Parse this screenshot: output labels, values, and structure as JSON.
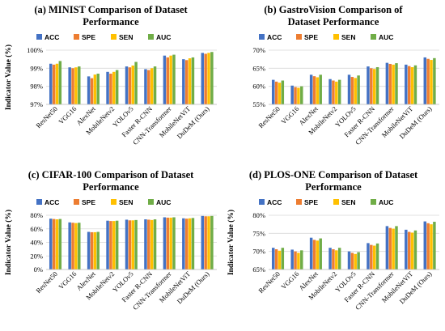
{
  "legend": [
    "ACC",
    "SPE",
    "SEN",
    "AUC"
  ],
  "colors": {
    "ACC": "#4472c4",
    "SPE": "#ed7d31",
    "SEN": "#ffc000",
    "AUC": "#70ad47",
    "grid": "#d9d9d9"
  },
  "chart_data": [
    {
      "type": "bar",
      "title_lines": [
        "(a) MINIST Comparison of Dataset",
        "Performance"
      ],
      "ylabel": "Indicator Value (%)",
      "ylim": [
        97,
        100
      ],
      "yticks": [
        97,
        98,
        99,
        100
      ],
      "tick_suffix": "%",
      "grid": true,
      "legend_position": "top",
      "categories": [
        "ResNet50",
        "VGG16",
        "AlexNet",
        "MobileNetv2",
        "YOLOv5",
        "Faster R-CNN",
        "CNN-Transformer",
        "MobileNetViT",
        "DuDeM (Ours)"
      ],
      "series": [
        {
          "name": "ACC",
          "values": [
            99.25,
            99.05,
            98.55,
            98.8,
            99.1,
            98.95,
            99.7,
            99.5,
            99.85
          ]
        },
        {
          "name": "SPE",
          "values": [
            99.2,
            99.0,
            98.45,
            98.7,
            99.05,
            98.9,
            99.6,
            99.45,
            99.8
          ]
        },
        {
          "name": "SEN",
          "values": [
            99.25,
            99.05,
            98.65,
            98.8,
            99.15,
            99.0,
            99.7,
            99.55,
            99.85
          ]
        },
        {
          "name": "AUC",
          "values": [
            99.4,
            99.1,
            98.7,
            98.9,
            99.35,
            99.1,
            99.75,
            99.6,
            99.9
          ]
        }
      ]
    },
    {
      "type": "bar",
      "title_lines": [
        "(b) GastroVision Comparison of",
        "Dataset Performance"
      ],
      "ylabel": "",
      "ylim": [
        55,
        70
      ],
      "yticks": [
        55,
        60,
        65,
        70
      ],
      "tick_suffix": "%",
      "grid": true,
      "legend_position": "top",
      "categories": [
        "ResNet50",
        "VGG16",
        "AlexNet",
        "MobileNetv2",
        "YOLOv5",
        "Faster R-CNN",
        "CNN-Transformer",
        "MobileNetViT",
        "DuDeM (Ours)"
      ],
      "series": [
        {
          "name": "ACC",
          "values": [
            61.8,
            60.2,
            63.2,
            62.0,
            63.2,
            65.5,
            66.5,
            66.0,
            68.0
          ]
        },
        {
          "name": "SPE",
          "values": [
            61.3,
            59.8,
            62.8,
            61.6,
            62.6,
            65.0,
            66.2,
            65.6,
            67.6
          ]
        },
        {
          "name": "SEN",
          "values": [
            61.0,
            59.6,
            62.5,
            61.3,
            62.3,
            64.8,
            66.0,
            65.3,
            67.3
          ]
        },
        {
          "name": "AUC",
          "values": [
            61.6,
            60.0,
            63.2,
            61.8,
            63.0,
            65.3,
            66.4,
            65.8,
            67.8
          ]
        }
      ]
    },
    {
      "type": "bar",
      "title_lines": [
        "(c) CIFAR-100 Comparison of Dataset",
        "Performance"
      ],
      "ylabel": "Indicator Value (%)",
      "ylim": [
        0,
        80
      ],
      "yticks": [
        0,
        20,
        40,
        60,
        80
      ],
      "tick_suffix": "%",
      "grid": true,
      "legend_position": "top",
      "categories": [
        "ResNet50",
        "VGG16",
        "AlexNet",
        "MobileNetv2",
        "YOLOv5",
        "Faster R-CNN",
        "CNN-Transformer",
        "MobileNetViT",
        "DuDeM (Ours)"
      ],
      "series": [
        {
          "name": "ACC",
          "values": [
            75.0,
            69.5,
            55.5,
            72.0,
            73.5,
            74.0,
            77.0,
            75.5,
            79.0
          ]
        },
        {
          "name": "SPE",
          "values": [
            74.5,
            69.0,
            55.0,
            71.5,
            72.5,
            73.5,
            76.5,
            75.0,
            78.5
          ]
        },
        {
          "name": "SEN",
          "values": [
            74.0,
            68.5,
            55.0,
            71.5,
            72.5,
            73.0,
            76.5,
            75.5,
            78.5
          ]
        },
        {
          "name": "AUC",
          "values": [
            74.5,
            69.0,
            55.5,
            72.0,
            73.0,
            74.0,
            77.0,
            76.0,
            79.0
          ]
        }
      ]
    },
    {
      "type": "bar",
      "title_lines": [
        "(d) PLOS-ONE Comparison of Dataset",
        "Performance"
      ],
      "ylabel": "Indicator Value (%)",
      "ylim": [
        65,
        80
      ],
      "yticks": [
        65,
        70,
        75,
        80
      ],
      "tick_suffix": "%",
      "grid": true,
      "legend_position": "top",
      "categories": [
        "ResNet50",
        "VGG16",
        "AlexNet",
        "MobileNetv2",
        "YOLOv5",
        "Faster R-CNN",
        "CNN-Transformer",
        "MobileNetViT",
        "DuDeM (Ours)"
      ],
      "series": [
        {
          "name": "ACC",
          "values": [
            71.0,
            70.5,
            73.8,
            71.0,
            70.0,
            72.3,
            77.0,
            76.0,
            78.3
          ]
        },
        {
          "name": "SPE",
          "values": [
            70.6,
            70.0,
            73.2,
            70.6,
            69.6,
            71.8,
            76.5,
            75.4,
            77.8
          ]
        },
        {
          "name": "SEN",
          "values": [
            70.2,
            69.6,
            73.0,
            70.3,
            69.3,
            71.6,
            76.3,
            75.2,
            77.5
          ]
        },
        {
          "name": "AUC",
          "values": [
            71.0,
            70.3,
            73.6,
            71.0,
            69.8,
            72.2,
            77.0,
            75.8,
            78.2
          ]
        }
      ]
    }
  ]
}
